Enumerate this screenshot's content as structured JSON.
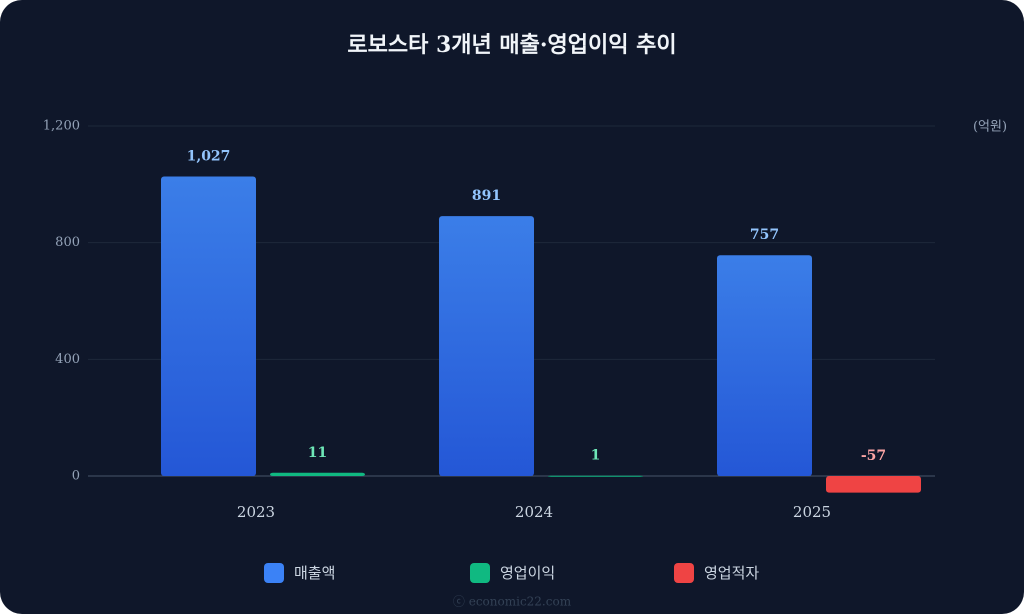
{
  "chart_data": {
    "type": "bar",
    "title": "로보스타 3개년 매출·영업이익 추이",
    "unit_label": "(억원)",
    "footer": "ⓒ economic22.com",
    "categories": [
      "2023",
      "2024",
      "2025"
    ],
    "series": [
      {
        "name": "매출액",
        "color": "#3b82f6",
        "values": [
          1027,
          891,
          757
        ],
        "value_labels": [
          "1,027",
          "891",
          "757"
        ],
        "label_color": "#93c5fd"
      },
      {
        "name": "영업이익",
        "color": "#10b981",
        "values": [
          11,
          1,
          null
        ],
        "label_color": "#6ee7b7"
      },
      {
        "name": "영업적자",
        "color": "#ef4444",
        "values": [
          null,
          null,
          -57
        ],
        "label_color": "#fca5a5"
      }
    ],
    "ylim": [
      0,
      1200
    ],
    "yticks": [
      0,
      400,
      800,
      {
        "value": 1200,
        "label": "1,200"
      }
    ],
    "grid": true
  }
}
